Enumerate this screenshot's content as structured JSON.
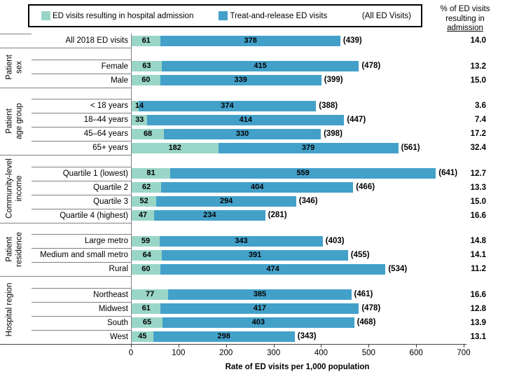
{
  "legend": {
    "items": [
      {
        "name": "admission-swatch",
        "label": "ED visits resulting in hospital admission",
        "color": "#99D6C7"
      },
      {
        "name": "treat-release-swatch",
        "label": "Treat-and-release ED visits",
        "color": "#43A1C9"
      }
    ],
    "all_label": "(All ED Visits)"
  },
  "pct_header": {
    "line1": "% of ED visits",
    "line2": "resulting in",
    "line3": "admission"
  },
  "chart_data": {
    "type": "bar",
    "orientation": "horizontal",
    "stacked": true,
    "xlim": [
      0,
      700
    ],
    "x_ticks": [
      0,
      100,
      200,
      300,
      400,
      500,
      600,
      700
    ],
    "xlabel": "Rate of ED visits per 1,000 population",
    "series_names": [
      "ED visits resulting in hospital admission",
      "Treat-and-release ED visits"
    ],
    "colors": {
      "admission": "#99D6C7",
      "treat_release": "#43A1C9"
    },
    "right_column_header": "% of ED visits resulting in admission",
    "groups": [
      {
        "label": "",
        "label_lines": [
          ""
        ],
        "rows": [
          {
            "label": "All 2018 ED visits",
            "admission": 61,
            "treat_release": 378,
            "total": "(439)",
            "pct": "14.0"
          }
        ]
      },
      {
        "label": "Patient sex",
        "label_lines": [
          "Patient",
          "sex"
        ],
        "rows": [
          {
            "label": "Female",
            "admission": 63,
            "treat_release": 415,
            "total": "(478)",
            "pct": "13.2"
          },
          {
            "label": "Male",
            "admission": 60,
            "treat_release": 339,
            "total": "(399)",
            "pct": "15.0"
          }
        ]
      },
      {
        "label": "Patient age group",
        "label_lines": [
          "Patient",
          "age group"
        ],
        "rows": [
          {
            "label": "< 18 years",
            "admission": 14,
            "treat_release": 374,
            "total": "(388)",
            "pct": "3.6"
          },
          {
            "label": "18–44 years",
            "admission": 33,
            "treat_release": 414,
            "total": "(447)",
            "pct": "7.4"
          },
          {
            "label": "45–64 years",
            "admission": 68,
            "treat_release": 330,
            "total": "(398)",
            "pct": "17.2"
          },
          {
            "label": "65+ years",
            "admission": 182,
            "treat_release": 379,
            "total": "(561)",
            "pct": "32.4"
          }
        ]
      },
      {
        "label": "Community-level income",
        "label_lines": [
          "Community-level",
          "income"
        ],
        "rows": [
          {
            "label": "Quartile 1 (lowest)",
            "admission": 81,
            "treat_release": 559,
            "total": "(641)",
            "pct": "12.7"
          },
          {
            "label": "Quartile 2",
            "admission": 62,
            "treat_release": 404,
            "total": "(466)",
            "pct": "13.3"
          },
          {
            "label": "Quartile 3",
            "admission": 52,
            "treat_release": 294,
            "total": "(346)",
            "pct": "15.0"
          },
          {
            "label": "Quartile 4 (highest)",
            "admission": 47,
            "treat_release": 234,
            "total": "(281)",
            "pct": "16.6"
          }
        ]
      },
      {
        "label": "Patient residence",
        "label_lines": [
          "Patient",
          "residence"
        ],
        "rows": [
          {
            "label": "Large metro",
            "admission": 59,
            "treat_release": 343,
            "total": "(403)",
            "pct": "14.8"
          },
          {
            "label": "Medium and small metro",
            "admission": 64,
            "treat_release": 391,
            "total": "(455)",
            "pct": "14.1"
          },
          {
            "label": "Rural",
            "admission": 60,
            "treat_release": 474,
            "total": "(534)",
            "pct": "11.2"
          }
        ]
      },
      {
        "label": "Hospital region",
        "label_lines": [
          "Hospital region"
        ],
        "rows": [
          {
            "label": "Northeast",
            "admission": 77,
            "treat_release": 385,
            "total": "(461)",
            "pct": "16.6"
          },
          {
            "label": "Midwest",
            "admission": 61,
            "treat_release": 417,
            "total": "(478)",
            "pct": "12.8"
          },
          {
            "label": "South",
            "admission": 65,
            "treat_release": 403,
            "total": "(468)",
            "pct": "13.9"
          },
          {
            "label": "West",
            "admission": 45,
            "treat_release": 298,
            "total": "(343)",
            "pct": "13.1"
          }
        ]
      }
    ]
  }
}
